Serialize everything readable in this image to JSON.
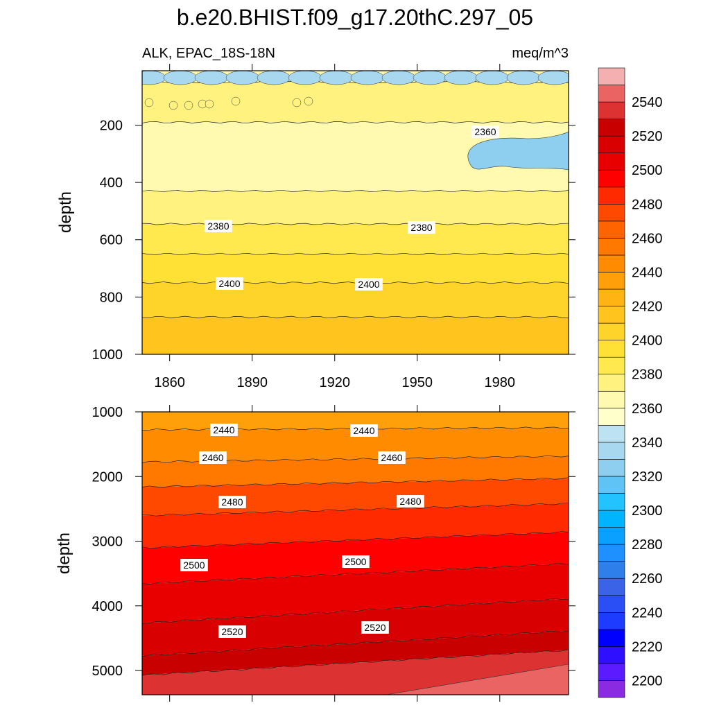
{
  "title": "b.e20.BHIST.f09_g17.20thC.297_05",
  "subtitle_left": "ALK, EPAC_18S-18N",
  "subtitle_right": "meq/m^3",
  "chart_data": [
    {
      "type": "heatmap",
      "panel": "upper",
      "xlabel": "",
      "ylabel": "depth",
      "xlim": [
        1850,
        2005
      ],
      "ylim": [
        10,
        1000
      ],
      "x_ticks": [
        "1860",
        "1890",
        "1920",
        "1950",
        "1980"
      ],
      "y_ticks": [
        "200",
        "400",
        "600",
        "800",
        "1000"
      ],
      "contour_labels": [
        "2360",
        "2380",
        "2380",
        "2400",
        "2400"
      ],
      "bands": [
        {
          "depth_top": 10,
          "depth_bottom": 50,
          "value": 2365
        },
        {
          "depth_top": 50,
          "depth_bottom": 190,
          "value": 2375
        },
        {
          "depth_top": 190,
          "depth_bottom": 430,
          "value": 2365
        },
        {
          "depth_top": 430,
          "depth_bottom": 545,
          "value": 2375
        },
        {
          "depth_top": 545,
          "depth_bottom": 650,
          "value": 2385
        },
        {
          "depth_top": 650,
          "depth_bottom": 750,
          "value": 2395
        },
        {
          "depth_top": 750,
          "depth_bottom": 870,
          "value": 2405
        },
        {
          "depth_top": 870,
          "depth_bottom": 1000,
          "value": 2415
        }
      ]
    },
    {
      "type": "heatmap",
      "panel": "lower",
      "xlabel": "",
      "ylabel": "depth",
      "xlim": [
        1850,
        2005
      ],
      "ylim": [
        1000,
        5375
      ],
      "x_ticks": [],
      "y_ticks": [
        "1000",
        "2000",
        "3000",
        "4000",
        "5000"
      ],
      "contour_labels": [
        "2440",
        "2440",
        "2460",
        "2460",
        "2480",
        "2480",
        "2500",
        "2500",
        "2520",
        "2520"
      ],
      "bands": [
        {
          "depth_top": 1000,
          "depth_bottom": 1250,
          "value": 2435
        },
        {
          "depth_top": 1250,
          "depth_bottom": 1700,
          "value": 2445
        },
        {
          "depth_top": 1700,
          "depth_bottom": 2050,
          "value": 2455
        },
        {
          "depth_top": 2050,
          "depth_bottom": 2450,
          "value": 2475
        },
        {
          "depth_top": 2450,
          "depth_bottom": 2900,
          "value": 2485
        },
        {
          "depth_top": 2900,
          "depth_bottom": 3400,
          "value": 2495
        },
        {
          "depth_top": 3400,
          "depth_bottom": 3950,
          "value": 2505
        },
        {
          "depth_top": 3950,
          "depth_bottom": 4450,
          "value": 2515
        },
        {
          "depth_top": 4450,
          "depth_bottom": 4750,
          "value": 2525
        },
        {
          "depth_top": 4750,
          "depth_bottom": 5375,
          "value": 2535
        }
      ]
    }
  ],
  "colorbar": {
    "tick_labels": [
      "2200",
      "2220",
      "2240",
      "2260",
      "2280",
      "2300",
      "2320",
      "2340",
      "2360",
      "2380",
      "2400",
      "2420",
      "2440",
      "2460",
      "2480",
      "2500",
      "2520",
      "2540"
    ],
    "colors": [
      "#8a2be2",
      "#5b1aff",
      "#2f0fff",
      "#0000ff",
      "#1e3cff",
      "#2a50f5",
      "#3a63e8",
      "#2f7fea",
      "#1e90ff",
      "#0aa0ff",
      "#00b4ff",
      "#22c3ff",
      "#5fc4f5",
      "#8ecfef",
      "#a7d8f0",
      "#bde3f3",
      "#ffffcc",
      "#fffab0",
      "#fff27f",
      "#ffe94f",
      "#ffe035",
      "#ffd42a",
      "#ffc51e",
      "#ffb414",
      "#ffa00a",
      "#ff8c00",
      "#ff7800",
      "#ff6400",
      "#ff4800",
      "#ff2a00",
      "#ff0000",
      "#e80000",
      "#d80000",
      "#c80000",
      "#dc3232",
      "#eb6464",
      "#f4b0b0"
    ]
  }
}
